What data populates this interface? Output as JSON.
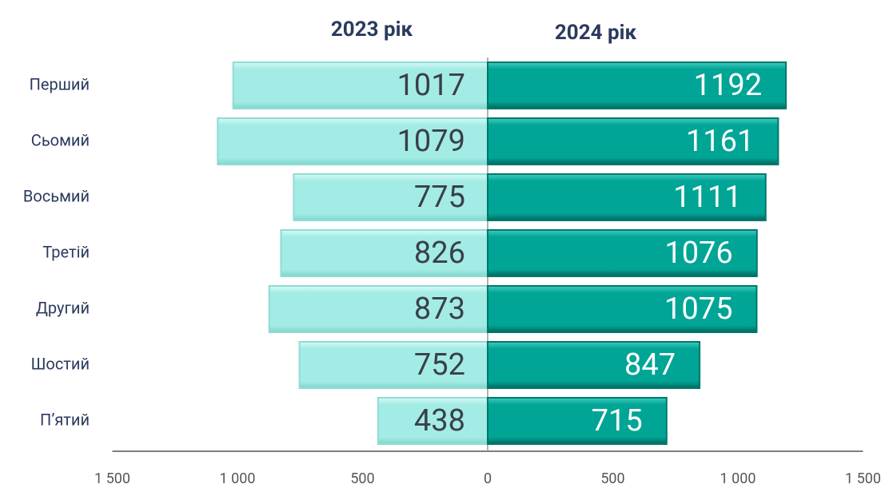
{
  "chart_data": {
    "type": "butterfly",
    "categories": [
      "Перший",
      "Сьомий",
      "Восьмий",
      "Третій",
      "Другий",
      "Шостий",
      "П’ятий"
    ],
    "series": [
      {
        "name": "2023 рік",
        "color": "#a3ece5",
        "values": [
          -1017,
          -1079,
          -775,
          -826,
          -873,
          -752,
          -438
        ],
        "value_labels": [
          "1017",
          "1079",
          "775",
          "826",
          "873",
          "752",
          "438"
        ]
      },
      {
        "name": "2024 рік",
        "color": "#00a596",
        "values": [
          1192,
          1161,
          1111,
          1076,
          1075,
          847,
          715
        ]
      }
    ],
    "xlim": [
      -1500,
      1500
    ],
    "xticks": [
      {
        "value": -1500,
        "label": "1 500"
      },
      {
        "value": -1000,
        "label": "1 000"
      },
      {
        "value": -500,
        "label": "500"
      },
      0,
      500,
      {
        "value": 1000,
        "label": "1 000"
      },
      {
        "value": 1500,
        "label": "1 500"
      }
    ]
  }
}
